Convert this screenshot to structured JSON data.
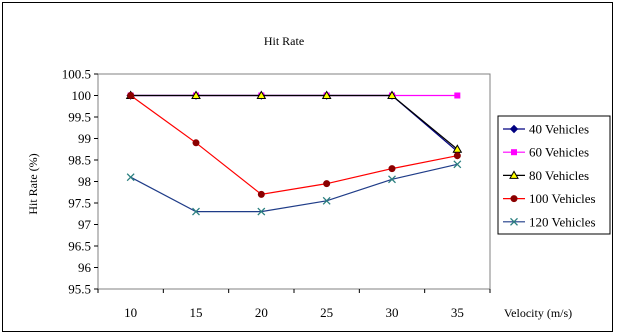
{
  "chart_data": {
    "type": "line",
    "title": "Hit Rate",
    "xlabel": "Velocity (m/s)",
    "ylabel": "Hit Rate (%)",
    "categories": [
      "10",
      "15",
      "20",
      "25",
      "30",
      "35"
    ],
    "ylim": [
      95.5,
      100.5
    ],
    "yticks": [
      "100.5",
      "100",
      "99.5",
      "99",
      "98.5",
      "98",
      "97.5",
      "97",
      "96.5",
      "96",
      "95.5"
    ],
    "grid": false,
    "legend_position": "right",
    "series": [
      {
        "name": "40 Vehicles",
        "values": [
          100,
          100,
          100,
          100,
          100,
          98.7
        ],
        "color": "#000080",
        "marker": "diamond"
      },
      {
        "name": "60 Vehicles",
        "values": [
          100,
          100,
          100,
          100,
          100,
          100
        ],
        "color": "#ff00ff",
        "marker": "square"
      },
      {
        "name": "80 Vehicles",
        "values": [
          100,
          100,
          100,
          100,
          100,
          98.75
        ],
        "color": "#000000",
        "marker": "triangle"
      },
      {
        "name": "100 Vehicles",
        "values": [
          100,
          98.9,
          97.7,
          97.95,
          98.3,
          98.6
        ],
        "color": "#ff0000",
        "marker": "circle"
      },
      {
        "name": "120 Vehicles",
        "values": [
          98.1,
          97.3,
          97.3,
          97.55,
          98.05,
          98.4
        ],
        "color": "#2a7f7f",
        "line_color": "#1f3c88",
        "marker": "x"
      }
    ]
  }
}
